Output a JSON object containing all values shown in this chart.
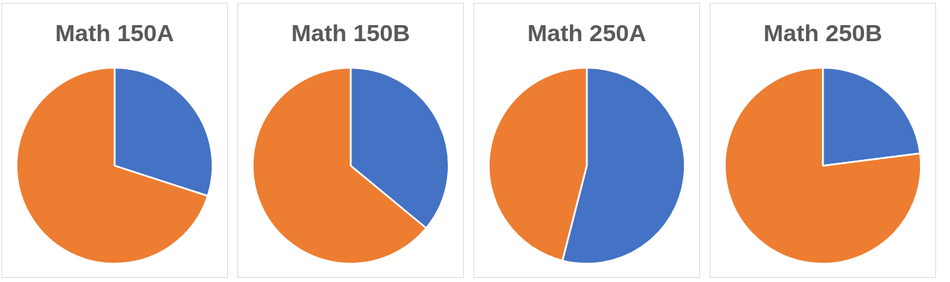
{
  "chart_data": [
    {
      "type": "pie",
      "title": "Math 150A",
      "categories": [
        null,
        null
      ],
      "values": [
        30,
        70
      ],
      "colors": [
        "#4472c4",
        "#ed7d31"
      ],
      "legend": false
    },
    {
      "type": "pie",
      "title": "Math 150B",
      "categories": [
        null,
        null
      ],
      "values": [
        36,
        64
      ],
      "colors": [
        "#4472c4",
        "#ed7d31"
      ],
      "legend": false
    },
    {
      "type": "pie",
      "title": "Math 250A",
      "categories": [
        null,
        null
      ],
      "values": [
        54,
        46
      ],
      "colors": [
        "#4472c4",
        "#ed7d31"
      ],
      "legend": false
    },
    {
      "type": "pie",
      "title": "Math 250B",
      "categories": [
        null,
        null
      ],
      "values": [
        23,
        77
      ],
      "colors": [
        "#4472c4",
        "#ed7d31"
      ],
      "legend": false
    }
  ]
}
